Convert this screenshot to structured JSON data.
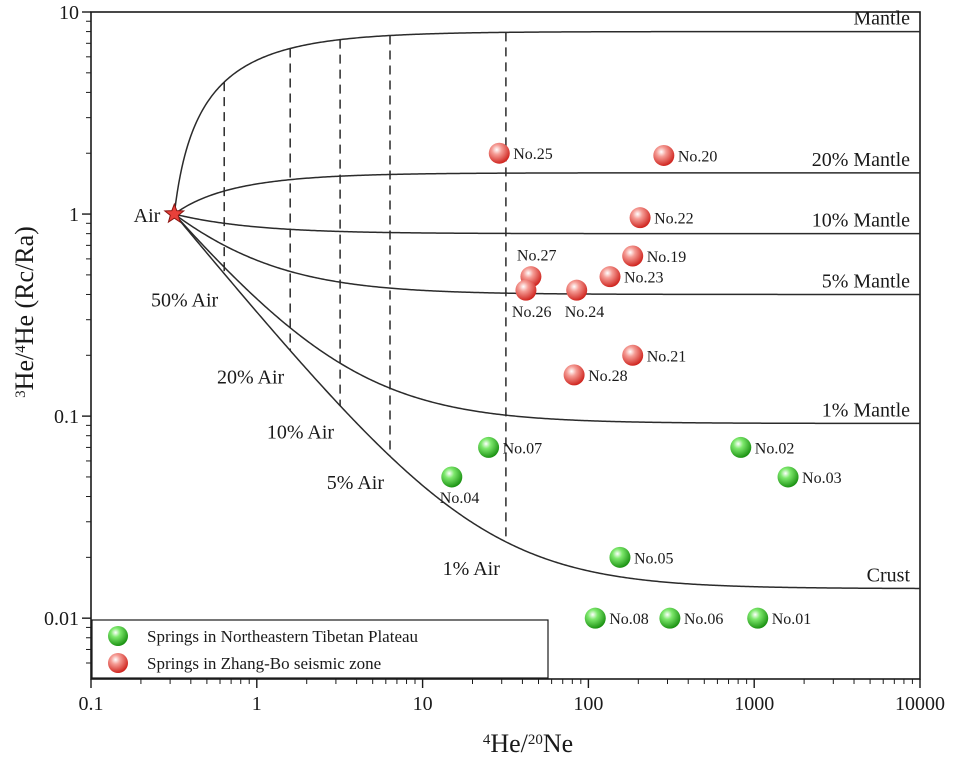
{
  "chart_data": {
    "type": "scatter",
    "title": "",
    "xlabel": "4He/20Ne",
    "ylabel": "3He/4He (Rc/Ra)",
    "xscale": "log",
    "yscale": "log",
    "xlim": [
      0.1,
      10000
    ],
    "ylim": [
      0.005,
      10
    ],
    "x_ticks": [
      "0.1",
      "1",
      "10",
      "100",
      "1000",
      "10000"
    ],
    "y_ticks": [
      "0.01",
      "0.1",
      "1",
      "10"
    ],
    "legend_position": "bottom-left",
    "colors": {
      "mantle_series": "#e8403a",
      "crust_series": "#2fbf1e",
      "lines": "#2b2b2b"
    },
    "air_point": {
      "label": "Air",
      "x": 0.318,
      "y": 1.0
    },
    "mixing_lines": [
      {
        "label": "Mantle",
        "end_y": 8.0
      },
      {
        "label": "20% Mantle",
        "end_y": 1.6
      },
      {
        "label": "10% Mantle",
        "end_y": 0.8
      },
      {
        "label": "5% Mantle",
        "end_y": 0.4
      },
      {
        "label": "1% Mantle",
        "end_y": 0.092
      },
      {
        "label": "Crust",
        "end_y": 0.014
      }
    ],
    "air_contours": [
      {
        "label": "50% Air",
        "x": 0.636
      },
      {
        "label": "20% Air",
        "x": 1.59
      },
      {
        "label": "10% Air",
        "x": 3.18
      },
      {
        "label": "5% Air",
        "x": 6.36
      },
      {
        "label": "1% Air",
        "x": 31.8
      }
    ],
    "series": [
      {
        "name": "Springs in Northeastern Tibetan Plateau",
        "color": "#2fbf1e",
        "points": [
          {
            "label": "No.07",
            "x": 25,
            "y": 0.07
          },
          {
            "label": "No.04",
            "x": 15,
            "y": 0.05
          },
          {
            "label": "No.02",
            "x": 830,
            "y": 0.07
          },
          {
            "label": "No.03",
            "x": 1600,
            "y": 0.05
          },
          {
            "label": "No.05",
            "x": 155,
            "y": 0.02
          },
          {
            "label": "No.08",
            "x": 110,
            "y": 0.01
          },
          {
            "label": "No.06",
            "x": 310,
            "y": 0.01
          },
          {
            "label": "No.01",
            "x": 1050,
            "y": 0.01
          }
        ]
      },
      {
        "name": "Springs in Zhang-Bo seismic zone",
        "color": "#e8403a",
        "points": [
          {
            "label": "No.25",
            "x": 29,
            "y": 2.0
          },
          {
            "label": "No.20",
            "x": 285,
            "y": 1.95
          },
          {
            "label": "No.22",
            "x": 205,
            "y": 0.96
          },
          {
            "label": "No.19",
            "x": 185,
            "y": 0.62
          },
          {
            "label": "No.27",
            "x": 45,
            "y": 0.49
          },
          {
            "label": "No.23",
            "x": 135,
            "y": 0.49
          },
          {
            "label": "No.26",
            "x": 42,
            "y": 0.42
          },
          {
            "label": "No.24",
            "x": 85,
            "y": 0.42
          },
          {
            "label": "No.21",
            "x": 185,
            "y": 0.2
          },
          {
            "label": "No.28",
            "x": 82,
            "y": 0.16
          }
        ]
      }
    ]
  }
}
